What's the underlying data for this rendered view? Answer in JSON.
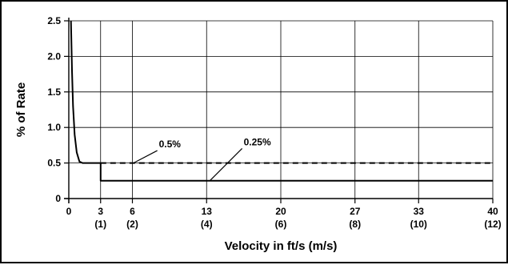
{
  "chart_data": {
    "type": "line",
    "title": "",
    "xlabel": "Velocity in ft/s (m/s)",
    "ylabel": "% of Rate",
    "xlim": [
      0,
      40
    ],
    "ylim": [
      0,
      2.5
    ],
    "grid": true,
    "x_ticks": [
      {
        "value": 0,
        "label": "0",
        "sub": ""
      },
      {
        "value": 3,
        "label": "3",
        "sub": "(1)"
      },
      {
        "value": 6,
        "label": "6",
        "sub": "(2)"
      },
      {
        "value": 13,
        "label": "13",
        "sub": "(4)"
      },
      {
        "value": 20,
        "label": "20",
        "sub": "(6)"
      },
      {
        "value": 27,
        "label": "27",
        "sub": "(8)"
      },
      {
        "value": 33,
        "label": "33",
        "sub": "(10)"
      },
      {
        "value": 40,
        "label": "40",
        "sub": "(12)"
      }
    ],
    "y_ticks": [
      {
        "value": 0,
        "label": "0"
      },
      {
        "value": 0.5,
        "label": "0.5"
      },
      {
        "value": 1.0,
        "label": "1.0"
      },
      {
        "value": 1.5,
        "label": "1.5"
      },
      {
        "value": 2.0,
        "label": "2.0"
      },
      {
        "value": 2.5,
        "label": "2.5"
      }
    ],
    "series": [
      {
        "name": "0.5%",
        "style": "solid",
        "points": [
          [
            0.2,
            2.5
          ],
          [
            0.3,
            1.8
          ],
          [
            0.4,
            1.3
          ],
          [
            0.55,
            0.9
          ],
          [
            0.75,
            0.65
          ],
          [
            1.0,
            0.52
          ],
          [
            1.3,
            0.5
          ],
          [
            3,
            0.5
          ]
        ]
      },
      {
        "name": "0.5%",
        "style": "dashed",
        "points": [
          [
            3,
            0.5
          ],
          [
            40,
            0.5
          ]
        ]
      },
      {
        "name": "0.25%",
        "style": "solid",
        "points": [
          [
            3,
            0.5
          ],
          [
            3,
            0.25
          ],
          [
            40,
            0.25
          ]
        ]
      }
    ],
    "annotations": [
      {
        "text": "0.5%",
        "x": 8.5,
        "y": 0.72,
        "leader_to": [
          6.1,
          0.5
        ]
      },
      {
        "text": "0.25%",
        "x": 16.5,
        "y": 0.75,
        "leader_to": [
          13.3,
          0.25
        ]
      }
    ],
    "colors": {
      "line": "#000000",
      "grid": "#000000",
      "background": "#ffffff"
    }
  }
}
